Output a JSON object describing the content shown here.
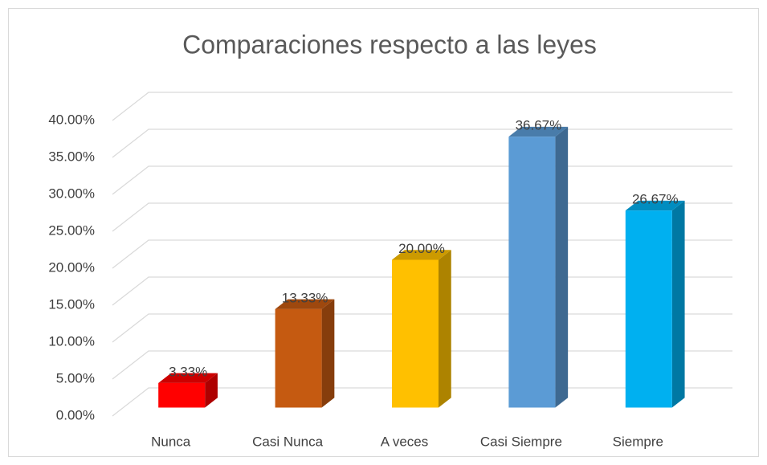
{
  "chart_data": {
    "type": "bar3d",
    "title": "Comparaciones respecto a las leyes",
    "categories": [
      "Nunca",
      "Casi Nunca",
      "A veces",
      "Casi Siempre",
      "Siempre"
    ],
    "values": [
      3.33,
      13.33,
      20,
      36.67,
      26.67
    ],
    "value_labels": [
      "3.33%",
      "13.33%",
      "20.00%",
      "36.67%",
      "26.67%"
    ],
    "colors": [
      "#ff0000",
      "#c55a11",
      "#ffc000",
      "#5b9bd5",
      "#00b0f0"
    ],
    "ylim": [
      0,
      40
    ],
    "yticks": [
      {
        "value": 0,
        "label": "0.00%"
      },
      {
        "value": 5,
        "label": "5.00%"
      },
      {
        "value": 10,
        "label": "10.00%"
      },
      {
        "value": 15,
        "label": "15.00%"
      },
      {
        "value": 20,
        "label": "20.00%"
      },
      {
        "value": 25,
        "label": "25.00%"
      },
      {
        "value": 30,
        "label": "30.00%"
      },
      {
        "value": 35,
        "label": "35.00%"
      },
      {
        "value": 40,
        "label": "40.00%"
      }
    ],
    "grid": true
  }
}
